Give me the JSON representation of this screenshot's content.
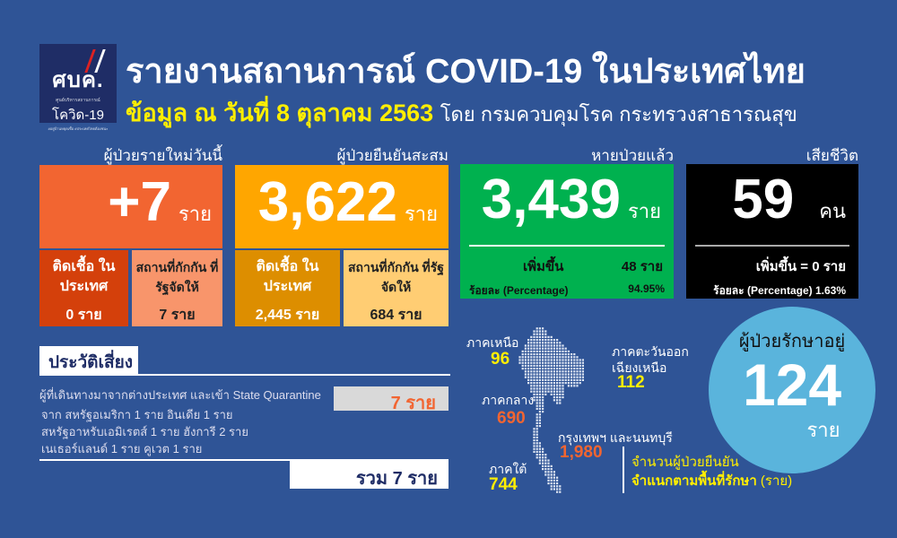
{
  "logo": {
    "name": "ศบค.",
    "org": "ศูนย์บริหารสถานการณ์",
    "sub": "โควิด-19",
    "tags": "#อยู่บ้านหยุดเชื้อ #ประเทศไทยต้องชนะ"
  },
  "header": {
    "title": "รายงานสถานการณ์ COVID-19 ในประเทศไทย",
    "date": "ข้อมูล ณ วันที่ 8 ตุลาคม 2563",
    "source": "โดย กรมควบคุมโรค กระทรวงสาธารณสุข"
  },
  "new_cases": {
    "label": "ผู้ป่วยรายใหม่วันนี้",
    "value": "+7",
    "unit": "ราย",
    "local_label": "ติดเชื้อ ในประเทศ",
    "local_value": "0 ราย",
    "sq_label": "สถานที่กักกัน ที่รัฐจัดให้",
    "sq_value": "7 ราย",
    "colors": [
      "#f26531",
      "#d4400b",
      "#f8956b"
    ]
  },
  "cumulative": {
    "label": "ผู้ป่วยยืนยันสะสม",
    "value": "3,622",
    "unit": "ราย",
    "local_label": "ติดเชื้อ ในประเทศ",
    "local_value": "2,445 ราย",
    "sq_label": "สถานที่กักกัน ที่รัฐจัดให้",
    "sq_value": "684 ราย",
    "colors": [
      "#ffa600",
      "#dd8e00",
      "#ffcd73"
    ]
  },
  "recovered": {
    "label": "หายป่วยแล้ว",
    "value": "3,439",
    "unit": "ราย",
    "increase_label": "เพิ่มขึ้น",
    "increase_value": "48 ราย",
    "pct_label": "ร้อยละ (Percentage)",
    "pct_value": "94.95%",
    "color": "#00b14f"
  },
  "deaths": {
    "label": "เสียชีวิต",
    "value": "59",
    "unit": "คน",
    "increase": "เพิ่มขึ้น = 0 ราย",
    "pct": "ร้อยละ (Percentage) 1.63%",
    "color": "#000000"
  },
  "risk": {
    "title": "ประวัติเสี่ยง",
    "lines": [
      "ผู้ที่เดินทางมาจากต่างประเทศ  และเข้า State Quarantine",
      "จาก สหรัฐอเมริกา 1 ราย อินเดีย 1 ราย",
      "สหรัฐอาหรับเอมิเรตส์ 1 ราย  ฮังการี 2 ราย",
      "เนเธอร์แลนด์ 1 ราย  คูเวต 1 ราย"
    ],
    "count": "7 ราย",
    "total": "รวม 7 ราย"
  },
  "regions": {
    "north": {
      "label": "ภาคเหนือ",
      "value": "96"
    },
    "northeast": {
      "label1": "ภาคตะวันออก",
      "label2": "เฉียงเหนือ",
      "value": "112"
    },
    "central": {
      "label": "ภาคกลาง",
      "value": "690"
    },
    "bangkok": {
      "label": "กรุงเทพฯ และนนทบุรี",
      "value": "1,980"
    },
    "south": {
      "label": "ภาคใต้",
      "value": "744"
    },
    "legend1": "จำนวนผู้ป่วยยืนยัน",
    "legend2": "จำแนกตามพื้นที่รักษา",
    "legend_unit": "(ราย)"
  },
  "in_treatment": {
    "label": "ผู้ป่วยรักษาอยู่",
    "value": "124",
    "unit": "ราย",
    "color": "#5ab4dc"
  }
}
